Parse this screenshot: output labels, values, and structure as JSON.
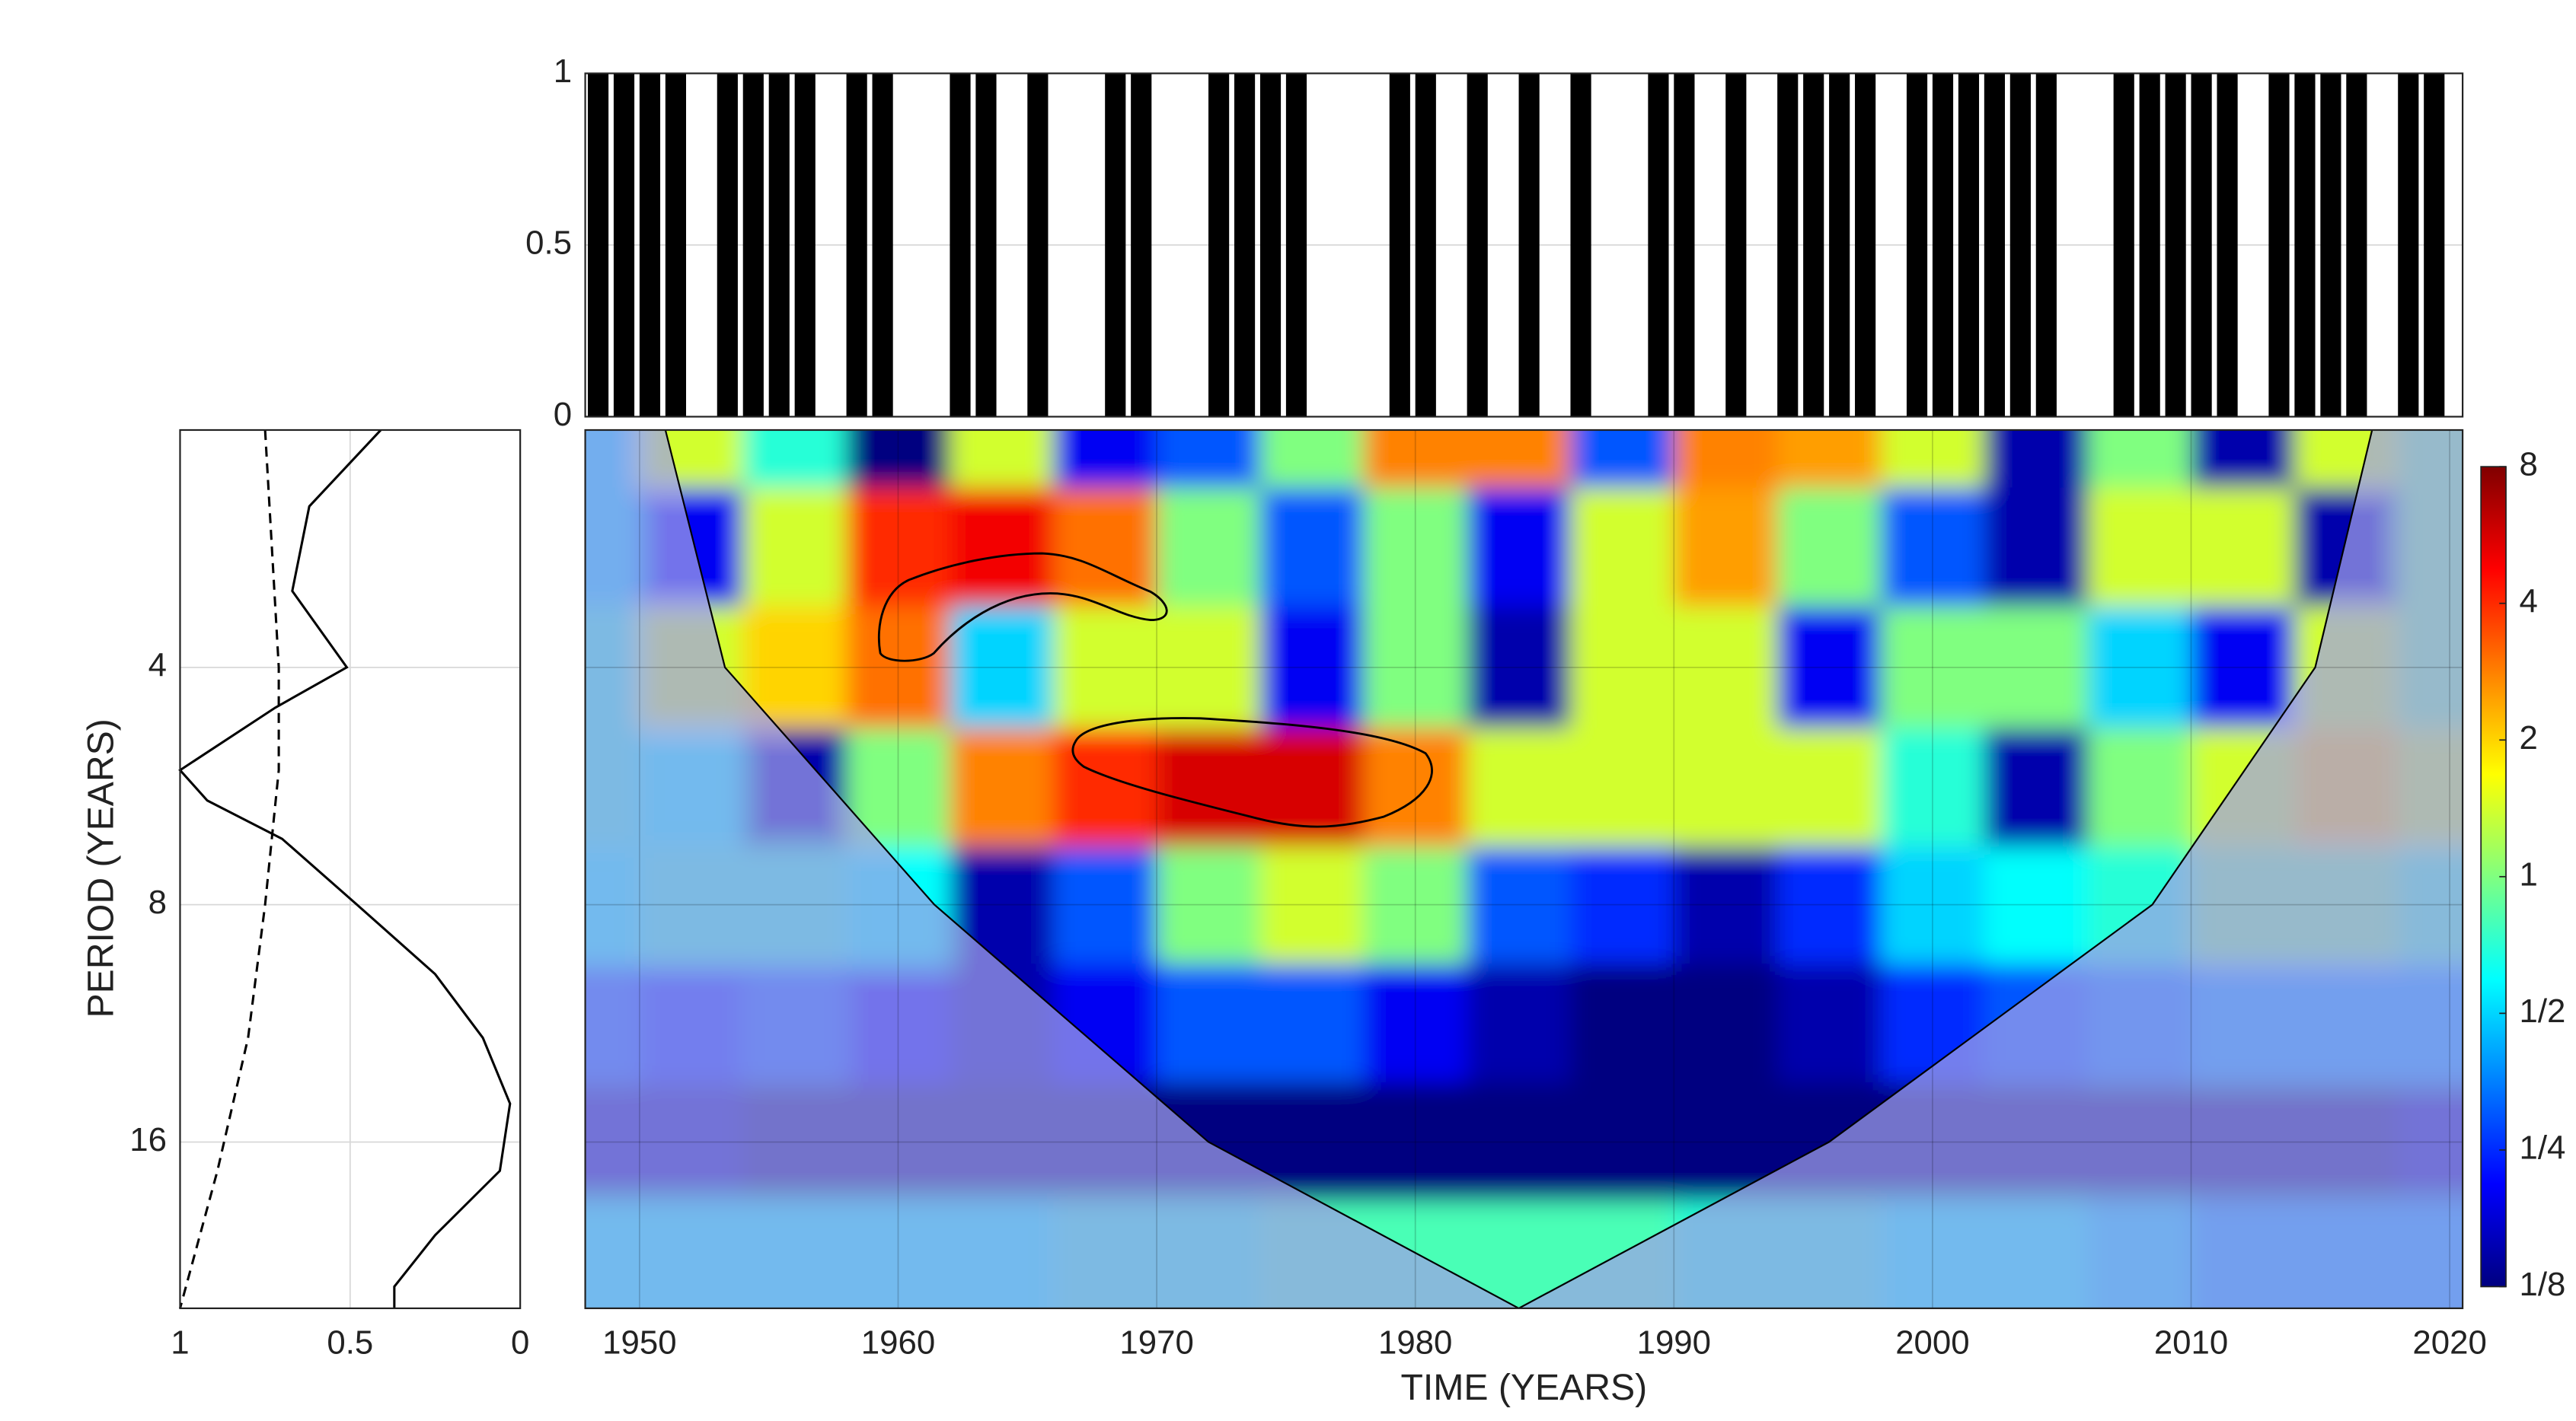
{
  "chart_data": [
    {
      "type": "bar",
      "color": "#000000",
      "xlim": [
        1947.9,
        2020.5
      ],
      "ylim": [
        0,
        1
      ],
      "yticks": [
        0,
        0.5,
        1
      ],
      "grid": true,
      "x": [
        1948,
        1949,
        1950,
        1951,
        1952,
        1953,
        1954,
        1955,
        1956,
        1957,
        1958,
        1959,
        1960,
        1961,
        1962,
        1963,
        1964,
        1965,
        1966,
        1967,
        1968,
        1969,
        1970,
        1971,
        1972,
        1973,
        1974,
        1975,
        1976,
        1977,
        1978,
        1979,
        1980,
        1981,
        1982,
        1983,
        1984,
        1985,
        1986,
        1987,
        1988,
        1989,
        1990,
        1991,
        1992,
        1993,
        1994,
        1995,
        1996,
        1997,
        1998,
        1999,
        2000,
        2001,
        2002,
        2003,
        2004,
        2005,
        2006,
        2007,
        2008,
        2009,
        2010,
        2011,
        2012,
        2013,
        2014,
        2015,
        2016,
        2017,
        2018,
        2019,
        2020
      ],
      "values": [
        1,
        1,
        1,
        1,
        0,
        1,
        1,
        1,
        1,
        0,
        1,
        1,
        0,
        0,
        1,
        1,
        0,
        1,
        0,
        0,
        1,
        1,
        0,
        0,
        1,
        1,
        1,
        1,
        0,
        0,
        0,
        1,
        1,
        0,
        1,
        0,
        1,
        0,
        1,
        0,
        0,
        1,
        1,
        0,
        1,
        0,
        1,
        1,
        1,
        1,
        0,
        1,
        1,
        1,
        1,
        1,
        1,
        0,
        0,
        1,
        1,
        1,
        1,
        1,
        0,
        1,
        1,
        1,
        1,
        0,
        1,
        1,
        0
      ]
    },
    {
      "type": "line",
      "ylabel": "PERIOD (YEARS)",
      "log_y": true,
      "xlim": [
        1,
        0
      ],
      "xticks": [
        1,
        0.5,
        0
      ],
      "ylim": [
        2,
        26
      ],
      "yticks": [
        4,
        8,
        16
      ],
      "grid": true,
      "series": [
        {
          "color": "#000000",
          "style": "solid",
          "y": [
            2,
            2.5,
            3.2,
            4,
            4.5,
            5.4,
            5.9,
            6.6,
            8,
            9.8,
            11.8,
            14.3,
            17.4,
            21,
            24.4,
            26
          ],
          "values": [
            0.41,
            0.62,
            0.67,
            0.51,
            0.72,
            1.0,
            0.92,
            0.7,
            0.48,
            0.25,
            0.11,
            0.03,
            0.06,
            0.25,
            0.37,
            0.37
          ]
        },
        {
          "color": "#000000",
          "style": "dashed",
          "y": [
            2,
            4,
            5.4,
            8,
            11.8,
            17.4,
            26
          ],
          "values": [
            0.75,
            0.71,
            0.71,
            0.75,
            0.8,
            0.89,
            1.0
          ]
        }
      ]
    },
    {
      "type": "heatmap",
      "xlabel": "TIME (YEARS)",
      "log_y": true,
      "colormap": "jet",
      "grid": true,
      "xlim": [
        1947.9,
        2020.5
      ],
      "xticks": [
        1950,
        1960,
        1970,
        1980,
        1990,
        2000,
        2010,
        2020
      ],
      "ylim": [
        2,
        26
      ],
      "yticks": [
        4,
        8,
        16
      ],
      "clim": [
        0.125,
        8
      ],
      "cticks": [
        {
          "value": 0.125,
          "label": "1/8"
        },
        {
          "value": 0.25,
          "label": "1/4"
        },
        {
          "value": 0.5,
          "label": "1/2"
        },
        1,
        2,
        4,
        8
      ],
      "x": [
        1948,
        1952,
        1956,
        1960,
        1964,
        1968,
        1972,
        1976,
        1980,
        1984,
        1988,
        1992,
        1996,
        2000,
        2004,
        2008,
        2012,
        2016,
        2020
      ],
      "y": [
        2,
        2.8,
        4,
        5.7,
        8,
        11.3,
        16,
        22.6
      ],
      "z": [
        [
          0.5,
          1.4,
          0.7,
          0.125,
          1.4,
          0.2,
          0.3,
          1,
          2.8,
          2.8,
          0.3,
          2.8,
          2.5,
          1.4,
          0.15,
          1,
          0.15,
          1.4,
          1
        ],
        [
          0.5,
          0.2,
          1.4,
          4,
          5,
          3,
          1,
          0.3,
          1,
          0.2,
          1.4,
          2.5,
          1,
          0.3,
          0.15,
          1.4,
          1.4,
          0.15,
          1
        ],
        [
          0.7,
          1.4,
          2,
          3,
          0.5,
          1.4,
          1.4,
          0.2,
          1,
          0.15,
          1.4,
          1.4,
          0.2,
          1,
          1,
          0.5,
          0.2,
          1.4,
          1
        ],
        [
          0.7,
          0.6,
          0.15,
          1,
          2.8,
          4,
          5.6,
          5.6,
          2.8,
          1.4,
          1.4,
          1.4,
          1.4,
          0.7,
          0.15,
          1,
          1.4,
          2,
          1.4
        ],
        [
          0.6,
          0.7,
          0.7,
          0.6,
          0.15,
          0.3,
          1,
          1.4,
          1,
          0.3,
          0.25,
          0.15,
          0.25,
          0.5,
          0.6,
          0.7,
          1,
          1,
          0.8
        ],
        [
          0.3,
          0.25,
          0.3,
          0.2,
          0.15,
          0.2,
          0.3,
          0.3,
          0.2,
          0.15,
          0.125,
          0.125,
          0.15,
          0.25,
          0.3,
          0.35,
          0.4,
          0.4,
          0.4
        ],
        [
          0.15,
          0.15,
          0.125,
          0.125,
          0.125,
          0.125,
          0.125,
          0.125,
          0.125,
          0.125,
          0.125,
          0.125,
          0.125,
          0.125,
          0.125,
          0.125,
          0.125,
          0.125,
          0.15
        ],
        [
          0.6,
          0.6,
          0.6,
          0.6,
          0.6,
          0.7,
          0.7,
          0.8,
          0.8,
          0.8,
          0.8,
          0.7,
          0.7,
          0.6,
          0.6,
          0.5,
          0.4,
          0.4,
          0.4
        ]
      ],
      "coi": {
        "x": [
          1951,
          1953.3,
          1961.4,
          1972,
          1984,
          1996,
          2008.5,
          2014.8,
          2017
        ],
        "y": [
          2,
          4,
          8,
          16,
          26,
          16,
          8,
          4,
          2
        ]
      }
    }
  ]
}
